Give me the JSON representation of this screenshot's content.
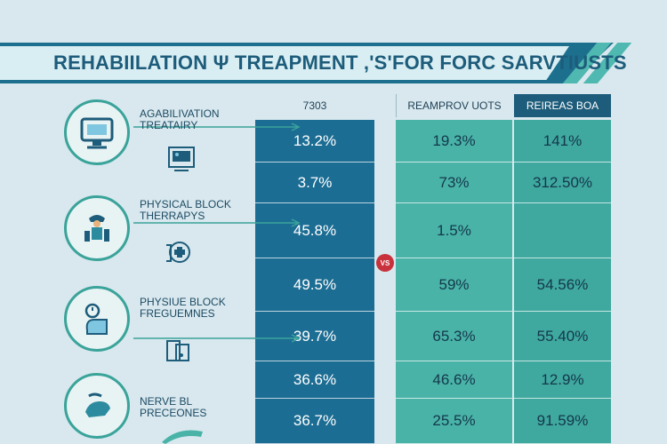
{
  "title": "REHABIILATION Ψ TREAPMENT ,'S'FOR FORC SARVTIUSTS",
  "columns": {
    "a_header": "7303",
    "b_header": "REAMPROV UOTS",
    "c_header": "REIREAS BOA"
  },
  "vs_label": "VS",
  "categories": [
    {
      "label_line1": "AGABILIVATION",
      "label_line2": "TREATAIRY",
      "icon": "monitor-icon",
      "sub_icon": "tablet-icon"
    },
    {
      "label_line1": "PHYSICAL BLOCK",
      "label_line2": "THERRAPYS",
      "icon": "person-icon",
      "sub_icon": "medical-cross-icon"
    },
    {
      "label_line1": "PHYSIUE BLOCK",
      "label_line2": "FREGUEMNES",
      "icon": "clock-icon",
      "sub_icon": "luggage-icon"
    },
    {
      "label_line1": "NERVE BL",
      "label_line2": "PRECEONES",
      "icon": "hand-icon",
      "sub_icon": "device-icon"
    }
  ],
  "rows": [
    {
      "a": "13.2%",
      "b": "19.3%",
      "c": "141%"
    },
    {
      "a": "3.7%",
      "b": "73%",
      "c": "312.50%"
    },
    {
      "a": "45.8%",
      "b": "1.5%",
      "c": ""
    },
    {
      "a": "49.5%",
      "b": "59%",
      "c": "54.56%"
    },
    {
      "a": "39.7%",
      "b": "65.3%",
      "c": "55.40%"
    },
    {
      "a": "36.6%",
      "b": "46.6%",
      "c": "12.9%"
    },
    {
      "a": "36.7%",
      "b": "25.5%",
      "c": "91.59%"
    }
  ],
  "colors": {
    "col_a": "#1c6d93",
    "col_b": "#49b3a8",
    "col_c": "#3fa89f",
    "accent": "#c8323c"
  }
}
